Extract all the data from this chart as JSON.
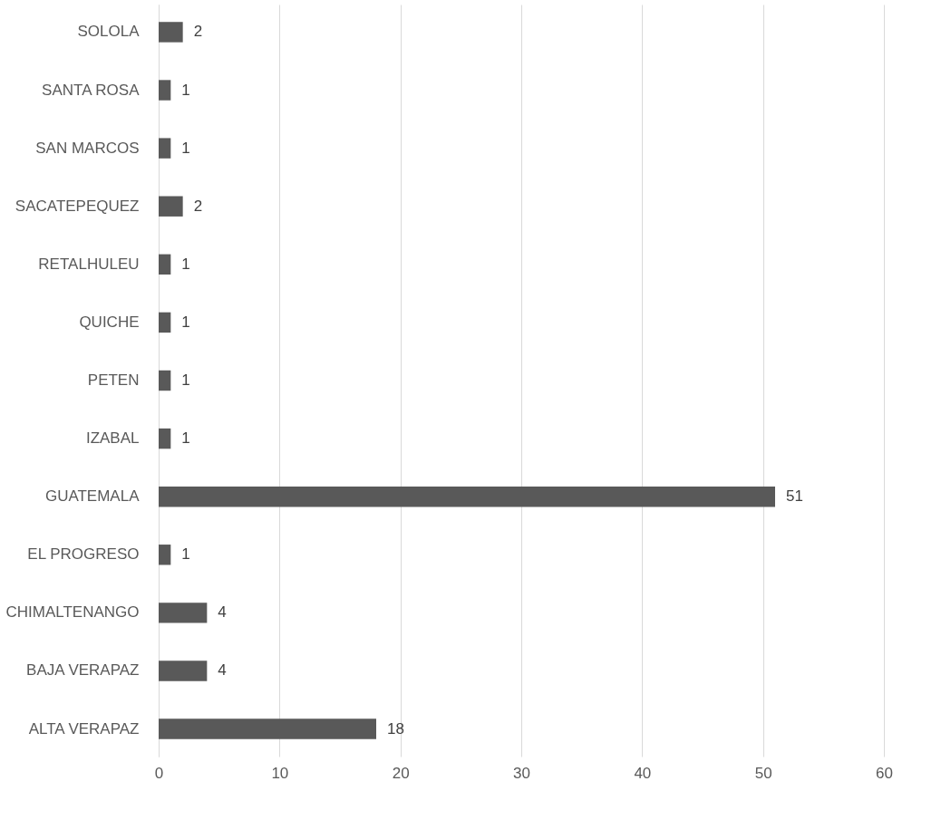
{
  "chart_data": {
    "type": "bar",
    "orientation": "horizontal",
    "categories": [
      "SOLOLA",
      "SANTA ROSA",
      "SAN MARCOS",
      "SACATEPEQUEZ",
      "RETALHULEU",
      "QUICHE",
      "PETEN",
      "IZABAL",
      "GUATEMALA",
      "EL PROGRESO",
      "CHIMALTENANGO",
      "BAJA VERAPAZ",
      "ALTA VERAPAZ"
    ],
    "values": [
      2,
      1,
      1,
      2,
      1,
      1,
      1,
      1,
      51,
      1,
      4,
      4,
      18
    ],
    "color": "#595959",
    "xlim": [
      0,
      60
    ],
    "xticks": [
      0,
      10,
      20,
      30,
      40,
      50,
      60
    ],
    "grid": "x",
    "data_labels": true
  }
}
